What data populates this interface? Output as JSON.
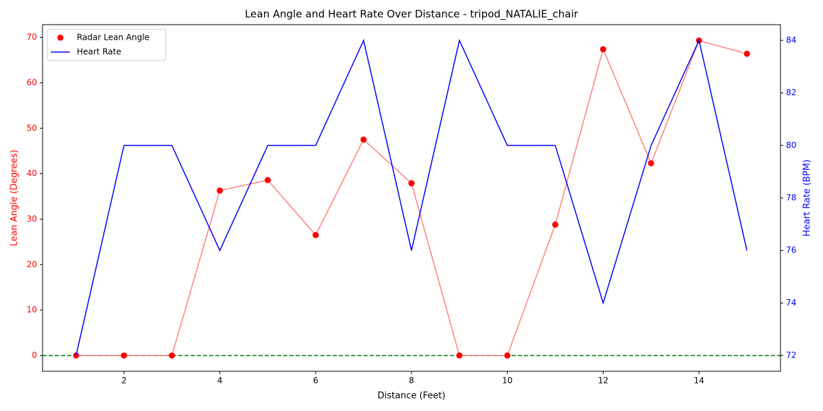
{
  "chart_data": {
    "type": "line",
    "title": "Lean Angle and Heart Rate Over Distance - tripod_NATALIE_chair",
    "xlabel": "Distance (Feet)",
    "ylabel": "Lean Angle (Degrees)",
    "y2label": "Heart Rate (BPM)",
    "x": [
      1,
      2,
      3,
      4,
      5,
      6,
      7,
      8,
      9,
      10,
      11,
      12,
      13,
      14,
      15
    ],
    "series": [
      {
        "name": "Radar Lean Angle",
        "mark": "scatter",
        "color": "#ff0000",
        "line_color": "#ff8080",
        "values": [
          0,
          0,
          0,
          36.3,
          38.6,
          26.5,
          47.5,
          37.9,
          0,
          0,
          28.8,
          67.4,
          42.3,
          69.3,
          66.4
        ]
      },
      {
        "name": "Heart Rate",
        "mark": "line",
        "color": "#0000ff",
        "axis": "y2",
        "values": [
          72,
          80,
          80,
          76,
          80,
          80,
          84,
          76,
          84,
          80,
          80,
          74,
          80,
          84,
          76
        ]
      }
    ],
    "hline": 0,
    "hline_color": "#008000",
    "xlim": [
      0.3,
      15.7
    ],
    "xticks": [
      2,
      4,
      6,
      8,
      10,
      12,
      14
    ],
    "ylim": [
      -3.47,
      72.8
    ],
    "yticks": [
      0,
      10,
      20,
      30,
      40,
      50,
      60,
      70
    ],
    "y2lim": [
      71.4,
      84.6
    ],
    "y2ticks": [
      72,
      74,
      76,
      78,
      80,
      82,
      84
    ],
    "legend": "upper left"
  }
}
